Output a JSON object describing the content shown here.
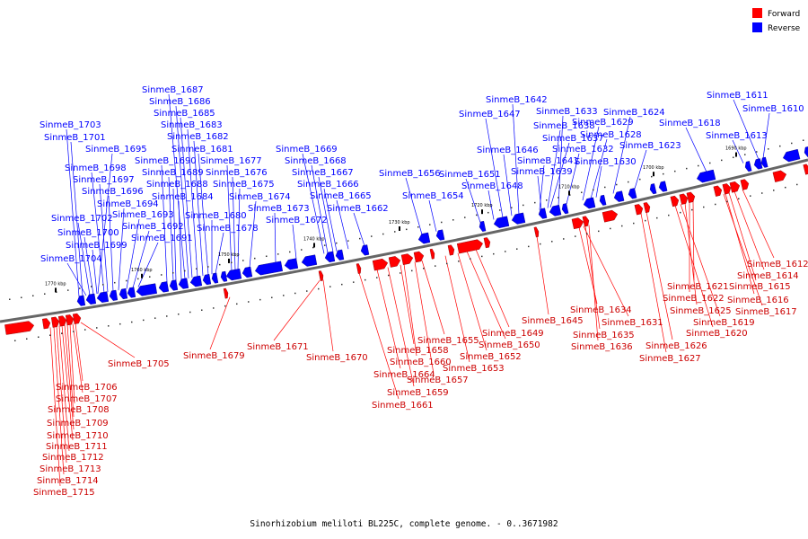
{
  "legend": [
    {
      "label": "Forward",
      "color": "#ff0000"
    },
    {
      "label": "Reverse",
      "color": "#0000ff"
    }
  ],
  "caption": "Sinorhizobium meliloti BL225C, complete genome. - 0..3671982",
  "ticks": [
    "1770 kbp",
    "1760 kbp",
    "1750 kbp",
    "1740 kbp",
    "1730 kbp",
    "1720 kbp",
    "1710 kbp",
    "1700 kbp",
    "1690 kbp"
  ],
  "reverse_genes": [
    {
      "name": "SinmeB_1687"
    },
    {
      "name": "SinmeB_1686"
    },
    {
      "name": "SinmeB_1685"
    },
    {
      "name": "SinmeB_1683"
    },
    {
      "name": "SinmeB_1682"
    },
    {
      "name": "SinmeB_1681"
    },
    {
      "name": "SinmeB_1690"
    },
    {
      "name": "SinmeB_1677"
    },
    {
      "name": "SinmeB_1689"
    },
    {
      "name": "SinmeB_1676"
    },
    {
      "name": "SinmeB_1688"
    },
    {
      "name": "SinmeB_1675"
    },
    {
      "name": "SinmeB_1684"
    },
    {
      "name": "SinmeB_1674"
    },
    {
      "name": "SinmeB_1680"
    },
    {
      "name": "SinmeB_1678"
    },
    {
      "name": "SinmeB_1673"
    },
    {
      "name": "SinmeB_1672"
    },
    {
      "name": "SinmeB_1703"
    },
    {
      "name": "SinmeB_1701"
    },
    {
      "name": "SinmeB_1695"
    },
    {
      "name": "SinmeB_1698"
    },
    {
      "name": "SinmeB_1697"
    },
    {
      "name": "SinmeB_1696"
    },
    {
      "name": "SinmeB_1694"
    },
    {
      "name": "SinmeB_1693"
    },
    {
      "name": "SinmeB_1692"
    },
    {
      "name": "SinmeB_1691"
    },
    {
      "name": "SinmeB_1702"
    },
    {
      "name": "SinmeB_1700"
    },
    {
      "name": "SinmeB_1699"
    },
    {
      "name": "SinmeB_1704"
    },
    {
      "name": "SinmeB_1669"
    },
    {
      "name": "SinmeB_1668"
    },
    {
      "name": "SinmeB_1667"
    },
    {
      "name": "SinmeB_1666"
    },
    {
      "name": "SinmeB_1665"
    },
    {
      "name": "SinmeB_1662"
    },
    {
      "name": "SinmeB_1656"
    },
    {
      "name": "SinmeB_1654"
    },
    {
      "name": "SinmeB_1651"
    },
    {
      "name": "SinmeB_1648"
    },
    {
      "name": "SinmeB_1642"
    },
    {
      "name": "SinmeB_1647"
    },
    {
      "name": "SinmeB_1638"
    },
    {
      "name": "SinmeB_1637"
    },
    {
      "name": "SinmeB_1646"
    },
    {
      "name": "SinmeB_1641"
    },
    {
      "name": "SinmeB_1639"
    },
    {
      "name": "SinmeB_1633"
    },
    {
      "name": "SinmeB_1629"
    },
    {
      "name": "SinmeB_1628"
    },
    {
      "name": "SinmeB_1632"
    },
    {
      "name": "SinmeB_1630"
    },
    {
      "name": "SinmeB_1624"
    },
    {
      "name": "SinmeB_1618"
    },
    {
      "name": "SinmeB_1623"
    },
    {
      "name": "SinmeB_1611"
    },
    {
      "name": "SinmeB_1610"
    },
    {
      "name": "SinmeB_1613"
    }
  ],
  "forward_genes": [
    {
      "name": "SinmeB_1612"
    },
    {
      "name": "SinmeB_1614"
    },
    {
      "name": "SinmeB_1615"
    },
    {
      "name": "SinmeB_1616"
    },
    {
      "name": "SinmeB_1617"
    },
    {
      "name": "SinmeB_1621"
    },
    {
      "name": "SinmeB_1622"
    },
    {
      "name": "SinmeB_1625"
    },
    {
      "name": "SinmeB_1619"
    },
    {
      "name": "SinmeB_1620"
    },
    {
      "name": "SinmeB_1626"
    },
    {
      "name": "SinmeB_1627"
    },
    {
      "name": "SinmeB_1634"
    },
    {
      "name": "SinmeB_1631"
    },
    {
      "name": "SinmeB_1635"
    },
    {
      "name": "SinmeB_1636"
    },
    {
      "name": "SinmeB_1645"
    },
    {
      "name": "SinmeB_1649"
    },
    {
      "name": "SinmeB_1650"
    },
    {
      "name": "SinmeB_1652"
    },
    {
      "name": "SinmeB_1655"
    },
    {
      "name": "SinmeB_1653"
    },
    {
      "name": "SinmeB_1658"
    },
    {
      "name": "SinmeB_1660"
    },
    {
      "name": "SinmeB_1657"
    },
    {
      "name": "SinmeB_1664"
    },
    {
      "name": "SinmeB_1659"
    },
    {
      "name": "SinmeB_1661"
    },
    {
      "name": "SinmeB_1670"
    },
    {
      "name": "SinmeB_1671"
    },
    {
      "name": "SinmeB_1679"
    },
    {
      "name": "SinmeB_1705"
    },
    {
      "name": "SinmeB_1706"
    },
    {
      "name": "SinmeB_1707"
    },
    {
      "name": "SinmeB_1708"
    },
    {
      "name": "SinmeB_1709"
    },
    {
      "name": "SinmeB_1710"
    },
    {
      "name": "SinmeB_1711"
    },
    {
      "name": "SinmeB_1712"
    },
    {
      "name": "SinmeB_1713"
    },
    {
      "name": "SinmeB_1714"
    },
    {
      "name": "SinmeB_1715"
    }
  ]
}
